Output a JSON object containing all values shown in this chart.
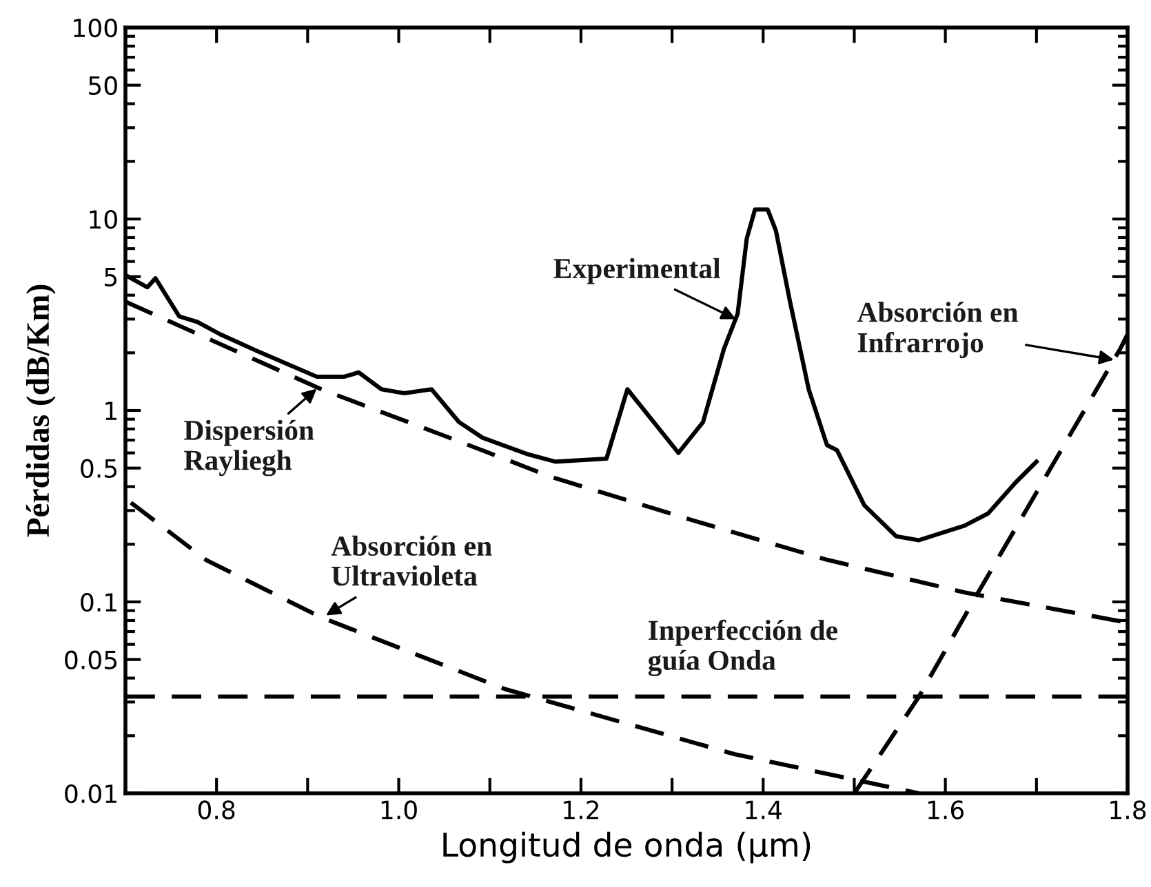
{
  "chart_data": {
    "type": "line",
    "xlabel": "Longitud de onda (μm)",
    "ylabel": "Pérdidas (dB/Km)",
    "log": "y",
    "xlim": [
      0.7,
      1.8
    ],
    "xticks": [
      0.8,
      {
        "value": 0.9,
        "label": null
      },
      {
        "value": 1.0,
        "label": "1.0"
      },
      {
        "value": 1.1,
        "label": null
      },
      1.2,
      {
        "value": 1.3,
        "label": null
      },
      1.4,
      {
        "value": 1.5,
        "label": null
      },
      1.6,
      {
        "value": 1.7,
        "label": null
      },
      1.8
    ],
    "ylim": [
      0.01,
      100
    ],
    "yticks": [
      0.01,
      0.05,
      0.1,
      0.5,
      1,
      5,
      10,
      50,
      100
    ],
    "grid": false,
    "series": [
      {
        "color": "#000000",
        "line_style": "solid",
        "x": [
          0.703,
          0.724,
          0.733,
          0.759,
          0.779,
          0.804,
          0.845,
          0.91,
          0.94,
          0.956,
          0.981,
          1.006,
          1.036,
          1.066,
          1.092,
          1.142,
          1.172,
          1.228,
          1.251,
          1.307,
          1.334,
          1.357,
          1.372,
          1.382,
          1.391,
          1.405,
          1.414,
          1.429,
          1.45,
          1.47,
          1.481,
          1.511,
          1.546,
          1.571,
          1.621,
          1.647,
          1.677,
          1.7
        ],
        "values": [
          5.0,
          4.4,
          4.9,
          3.1,
          2.9,
          2.5,
          2.04,
          1.5,
          1.5,
          1.58,
          1.29,
          1.23,
          1.29,
          0.87,
          0.72,
          0.59,
          0.54,
          0.56,
          1.29,
          0.6,
          0.87,
          2.1,
          3.2,
          7.9,
          11.2,
          11.2,
          8.7,
          3.8,
          1.29,
          0.66,
          0.62,
          0.32,
          0.22,
          0.21,
          0.25,
          0.29,
          0.42,
          0.54
        ]
      },
      {
        "color": "#000000",
        "line_style": "dashed",
        "x": [
          0.7,
          0.915,
          1.066,
          1.167,
          1.319,
          1.47,
          1.621,
          1.8
        ],
        "values": [
          3.7,
          1.29,
          0.69,
          0.45,
          0.27,
          0.166,
          0.112,
          0.078
        ]
      },
      {
        "color": "#000000",
        "line_style": "dashed",
        "x": [
          0.706,
          0.789,
          0.915,
          1.117,
          1.369,
          1.571
        ],
        "values": [
          0.33,
          0.165,
          0.083,
          0.035,
          0.016,
          0.01
        ]
      },
      {
        "color": "#000000",
        "line_style": "dashed",
        "x": [
          0.7,
          1.8
        ],
        "values": [
          0.032,
          0.032
        ]
      },
      {
        "color": "#000000",
        "line_style": "dashed",
        "x": [
          1.5,
          1.571,
          1.636,
          1.792,
          1.8
        ],
        "values": [
          0.01,
          0.032,
          0.112,
          2.1,
          2.5
        ]
      }
    ],
    "annotations": [
      {
        "text": "Experimental",
        "x": 1.37,
        "y": 3.0
      },
      {
        "text": "Absorción en\nInfrarrojo",
        "x": 1.785,
        "y": 1.84
      },
      {
        "text": "Dispersión\nRayliegh",
        "x": 0.91,
        "y": 1.3
      },
      {
        "text": "Absorción en\nUltravioleta",
        "x": 0.92,
        "y": 0.085
      },
      {
        "text": "Inperfección de\nguía Onda",
        "x": 1.45,
        "y": 0.032
      }
    ]
  }
}
